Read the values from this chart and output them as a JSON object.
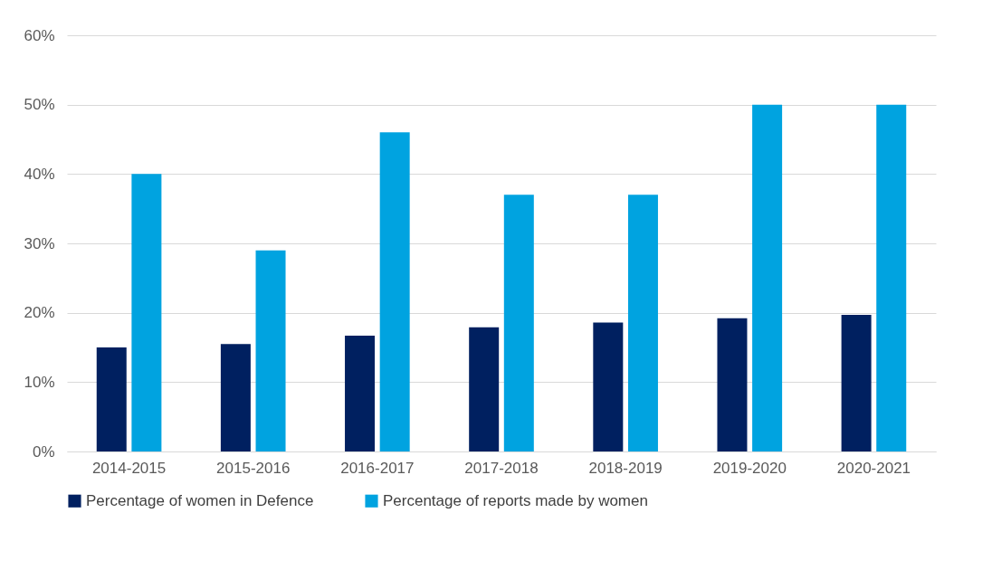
{
  "chart_data": {
    "type": "bar",
    "categories": [
      "2014-2015",
      "2015-2016",
      "2016-2017",
      "2017-2018",
      "2018-2019",
      "2019-2020",
      "2020-2021"
    ],
    "series": [
      {
        "name": "Percentage of women in Defence",
        "color": "#002060",
        "values": [
          15,
          15.5,
          16.7,
          17.9,
          18.6,
          19.2,
          19.7
        ]
      },
      {
        "name": "Percentage of reports made by women",
        "color": "#00a3e0",
        "values": [
          40,
          29,
          46,
          37,
          37,
          50,
          50
        ]
      }
    ],
    "ylim": [
      0,
      60
    ],
    "yticks": [
      {
        "value": 0,
        "label": "0%"
      },
      {
        "value": 10,
        "label": "10%"
      },
      {
        "value": 20,
        "label": "20%"
      },
      {
        "value": 30,
        "label": "30%"
      },
      {
        "value": 40,
        "label": "40%"
      },
      {
        "value": 50,
        "label": "50%"
      },
      {
        "value": 60,
        "label": "60%"
      }
    ],
    "grid": "y",
    "legend": "bottom"
  }
}
